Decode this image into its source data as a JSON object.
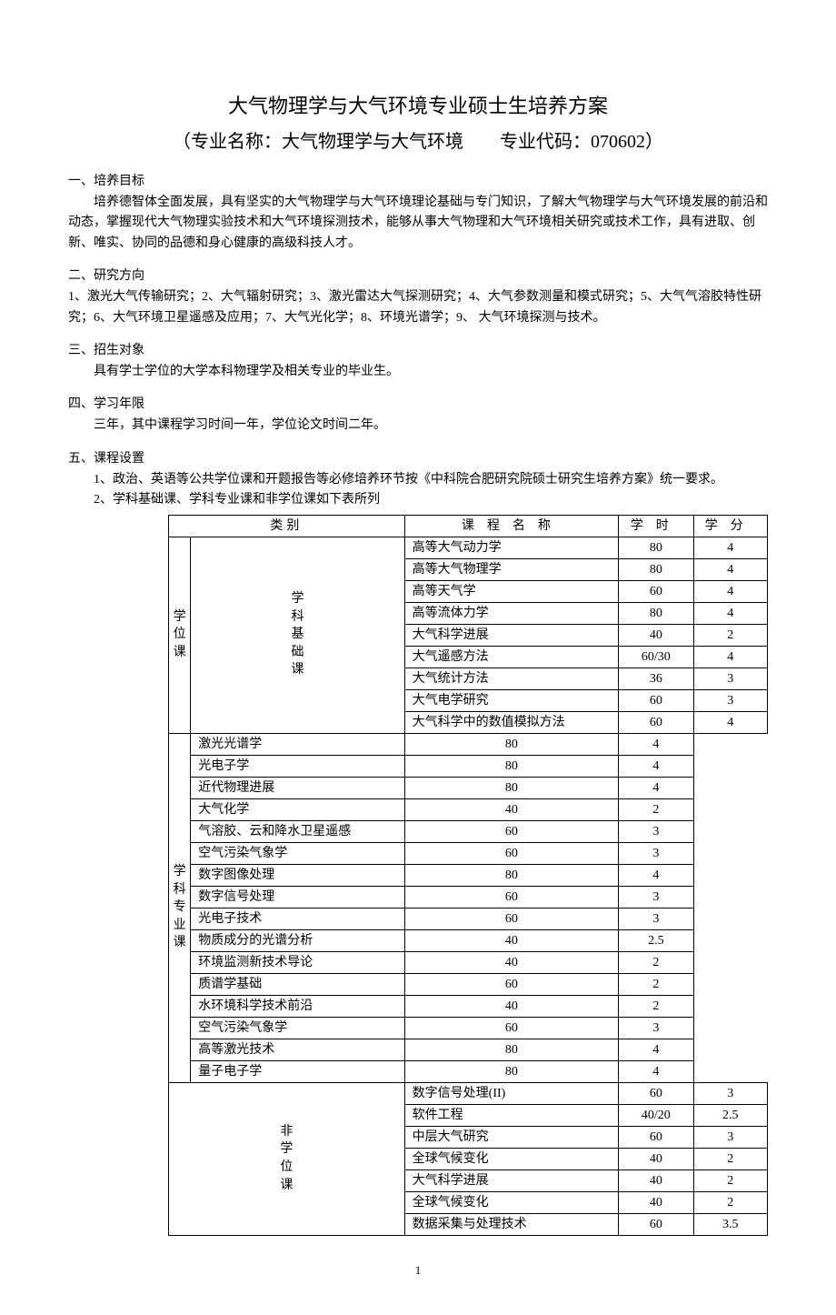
{
  "title": "大气物理学与大气环境专业硕士生培养方案",
  "subtitle": "（专业名称：大气物理学与大气环境  专业代码：070602）",
  "sec1_h": "一、培养目标",
  "sec1_p": "培养德智体全面发展，具有坚实的大气物理学与大气环境理论基础与专门知识，了解大气物理学与大气环境发展的前沿和动态，掌握现代大气物理实验技术和大气环境探测技术，能够从事大气物理和大气环境相关研究或技术工作，具有进取、创新、唯实、协同的品德和身心健康的高级科技人才。",
  "sec2_h": "二、研究方向",
  "sec2_p": "1、激光大气传输研究；2、大气辐射研究；3、激光雷达大气探测研究；4、大气参数测量和模式研究；5、大气气溶胶特性研究；6、大气环境卫星遥感及应用；7、大气光化学；8、环境光谱学；9、 大气环境探测与技术。",
  "sec3_h": "三、招生对象",
  "sec3_p": "具有学士学位的大学本科物理学及相关专业的毕业生。",
  "sec4_h": "四、学习年限",
  "sec4_p": "三年，其中课程学习时间一年，学位论文时间二年。",
  "sec5_h": "五、课程设置",
  "sec5_li1": "1、政治、英语等公共学位课和开题报告等必修培养环节按《中科院合肥研究院硕士研究生培养方案》统一要求。",
  "sec5_li2": "2、学科基础课、学科专业课和非学位课如下表所列",
  "table": {
    "head": {
      "cat": "类别",
      "name": "课程名称",
      "hours": "学时",
      "credit": "学分"
    },
    "cat_degree": "学位课",
    "cat_base": "学科基础课",
    "cat_major": "学科专业课",
    "cat_nondeg": "非学位课",
    "base": [
      {
        "name": "高等大气动力学",
        "hours": "80",
        "credit": "4"
      },
      {
        "name": "高等大气物理学",
        "hours": "80",
        "credit": "4"
      },
      {
        "name": "高等天气学",
        "hours": "60",
        "credit": "4"
      },
      {
        "name": "高等流体力学",
        "hours": "80",
        "credit": "4"
      },
      {
        "name": "大气科学进展",
        "hours": "40",
        "credit": "2"
      },
      {
        "name": "大气遥感方法",
        "hours": "60/30",
        "credit": "4"
      },
      {
        "name": "大气统计方法",
        "hours": "36",
        "credit": "3"
      },
      {
        "name": "大气电学研究",
        "hours": "60",
        "credit": "3"
      },
      {
        "name": "大气科学中的数值模拟方法",
        "hours": "60",
        "credit": "4"
      }
    ],
    "major": [
      {
        "name": "激光光谱学",
        "hours": "80",
        "credit": "4"
      },
      {
        "name": "光电子学",
        "hours": "80",
        "credit": "4"
      },
      {
        "name": "近代物理进展",
        "hours": "80",
        "credit": "4"
      },
      {
        "name": "大气化学",
        "hours": "40",
        "credit": "2"
      },
      {
        "name": "气溶胶、云和降水卫星遥感",
        "hours": "60",
        "credit": "3"
      },
      {
        "name": "空气污染气象学",
        "hours": "60",
        "credit": "3"
      },
      {
        "name": "数字图像处理",
        "hours": "80",
        "credit": "4"
      },
      {
        "name": "数字信号处理",
        "hours": "60",
        "credit": "3"
      },
      {
        "name": "光电子技术",
        "hours": "60",
        "credit": "3"
      },
      {
        "name": "物质成分的光谱分析",
        "hours": "40",
        "credit": "2.5"
      },
      {
        "name": "环境监测新技术导论",
        "hours": "40",
        "credit": "2"
      },
      {
        "name": "质谱学基础",
        "hours": "60",
        "credit": "2"
      },
      {
        "name": "水环境科学技术前沿",
        "hours": "40",
        "credit": "2"
      },
      {
        "name": "空气污染气象学",
        "hours": "60",
        "credit": "3"
      },
      {
        "name": "高等激光技术",
        "hours": "80",
        "credit": "4"
      },
      {
        "name": "量子电子学",
        "hours": "80",
        "credit": "4"
      }
    ],
    "nondeg": [
      {
        "name": "数字信号处理(II)",
        "hours": "60",
        "credit": "3"
      },
      {
        "name": "软件工程",
        "hours": "40/20",
        "credit": "2.5"
      },
      {
        "name": "中层大气研究",
        "hours": "60",
        "credit": "3"
      },
      {
        "name": "全球气候变化",
        "hours": "40",
        "credit": "2"
      },
      {
        "name": "大气科学进展",
        "hours": "40",
        "credit": "2"
      },
      {
        "name": "全球气候变化",
        "hours": "40",
        "credit": "2"
      },
      {
        "name": "数据采集与处理技术",
        "hours": "60",
        "credit": "3.5"
      }
    ]
  },
  "page_num": "1"
}
